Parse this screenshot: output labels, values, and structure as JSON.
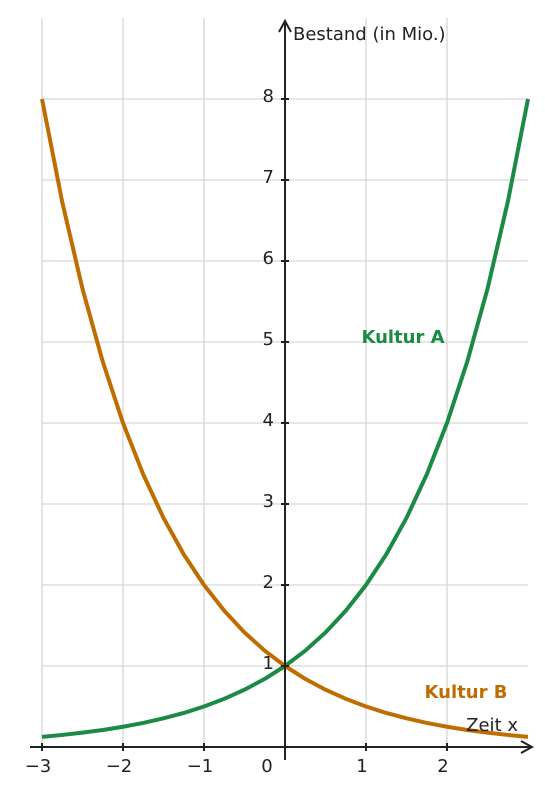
{
  "chart_data": {
    "type": "line",
    "x_label": "Zeit x",
    "y_label": "Bestand (in Mio.)",
    "x": [
      -3,
      -2.75,
      -2.5,
      -2.25,
      -2,
      -1.75,
      -1.5,
      -1.25,
      -1,
      -0.75,
      -0.5,
      -0.25,
      0,
      0.25,
      0.5,
      0.75,
      1,
      1.25,
      1.5,
      1.75,
      2,
      2.25,
      2.5,
      2.75,
      3
    ],
    "series": [
      {
        "name": "Kultur A",
        "color": "#1b8a44",
        "values": [
          0.125,
          0.149,
          0.177,
          0.21,
          0.25,
          0.297,
          0.354,
          0.42,
          0.5,
          0.595,
          0.707,
          0.841,
          1,
          1.189,
          1.414,
          1.682,
          2,
          2.378,
          2.828,
          3.364,
          4,
          4.757,
          5.657,
          6.727,
          8
        ]
      },
      {
        "name": "Kultur B",
        "color": "#bf6d00",
        "values": [
          8,
          6.727,
          5.657,
          4.757,
          4,
          3.364,
          2.828,
          2.378,
          2,
          1.682,
          1.414,
          1.189,
          1,
          0.841,
          0.707,
          0.595,
          0.5,
          0.42,
          0.354,
          0.297,
          0.25,
          0.21,
          0.177,
          0.149,
          0.125
        ]
      }
    ],
    "xlim": [
      -3,
      3
    ],
    "ylim": [
      0,
      9
    ],
    "xticks": [
      {
        "value": -3,
        "label": "−3"
      },
      {
        "value": -2,
        "label": "−2"
      },
      {
        "value": -1,
        "label": "−1"
      },
      0,
      1,
      2
    ],
    "yticks": [
      1,
      2,
      3,
      4,
      5,
      6,
      7,
      8
    ],
    "grid": true
  }
}
